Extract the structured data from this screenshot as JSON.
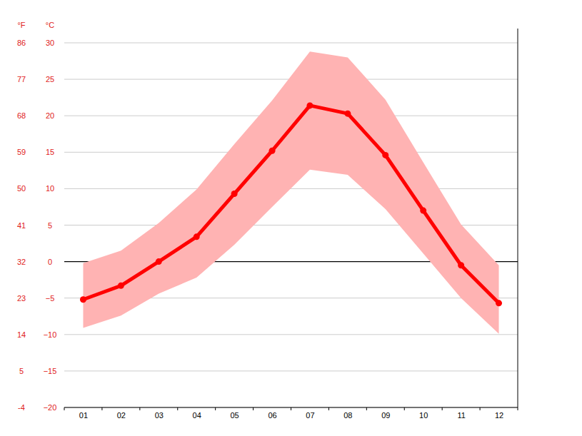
{
  "chart_data": {
    "type": "line",
    "ylabel": "°C",
    "y2label": "°F",
    "categories": [
      "01",
      "02",
      "03",
      "04",
      "05",
      "06",
      "07",
      "08",
      "09",
      "10",
      "11",
      "12"
    ],
    "values": [
      -5.2,
      -3.3,
      0.0,
      3.4,
      9.3,
      15.2,
      21.4,
      20.3,
      14.6,
      7.0,
      -0.5,
      -5.7
    ],
    "high": [
      -0.2,
      1.5,
      5.3,
      9.9,
      16.1,
      22.1,
      28.8,
      28.0,
      22.2,
      13.6,
      5.1,
      -0.5
    ],
    "low": [
      -9.1,
      -7.4,
      -4.4,
      -2.2,
      2.3,
      7.5,
      12.6,
      11.9,
      7.2,
      1.1,
      -5.0,
      -9.9
    ],
    "color": "#ff0000",
    "marker": "circle",
    "grid": true,
    "ylim": [
      -20,
      30
    ],
    "yticks": [
      {
        "value": -20,
        "label": "−20"
      },
      {
        "value": -15,
        "label": "−15"
      },
      {
        "value": -10,
        "label": "−10"
      },
      {
        "value": -5,
        "label": "−5"
      },
      0,
      5,
      10,
      15,
      20,
      25,
      30
    ],
    "y2lim": [
      -4,
      86
    ],
    "y2ticks": [
      -4,
      5,
      14,
      23,
      32,
      41,
      50,
      59,
      68,
      77,
      86
    ]
  }
}
